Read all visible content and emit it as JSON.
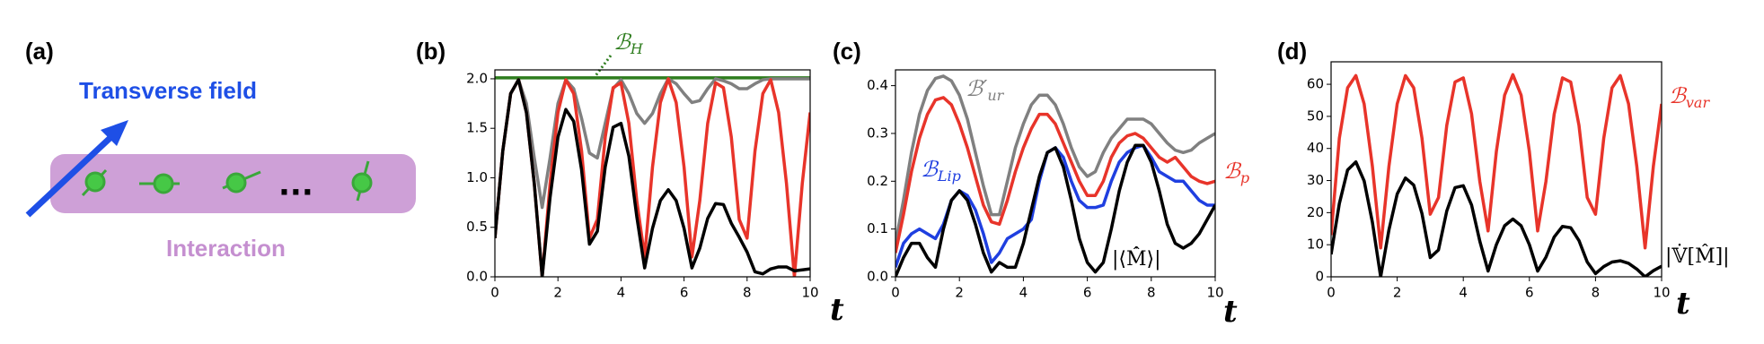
{
  "figure": {
    "panel_a": {
      "label": "(a)",
      "field_label": "Transverse field",
      "interaction_label": "Interaction"
    }
  },
  "chart_data": [
    {
      "type": "line",
      "panel_label": "(b)",
      "xlabel": "t",
      "xlim": [
        0,
        10
      ],
      "ylim": [
        0,
        2.09
      ],
      "xticks": [
        0,
        2,
        4,
        6,
        8,
        10
      ],
      "yticks": [
        {
          "value": 0,
          "label": "0.0"
        },
        {
          "value": 0.5,
          "label": "0.5"
        },
        {
          "value": 1,
          "label": "1.0"
        },
        {
          "value": 1.5,
          "label": "1.5"
        },
        {
          "value": 2,
          "label": "2.0"
        }
      ],
      "x": [
        0,
        0.25,
        0.5,
        0.75,
        1,
        1.25,
        1.5,
        1.75,
        2,
        2.25,
        2.5,
        2.75,
        3,
        3.25,
        3.5,
        3.75,
        4,
        4.25,
        4.5,
        4.75,
        5,
        5.25,
        5.5,
        5.75,
        6,
        6.25,
        6.5,
        6.75,
        7,
        7.25,
        7.5,
        7.75,
        8,
        8.25,
        8.5,
        8.75,
        9,
        9.25,
        9.5,
        9.75,
        10
      ],
      "series": [
        {
          "name": "ℬH",
          "color": "#2e7d1e",
          "values": [
            2.01,
            2.01,
            2.01,
            2.01,
            2.01,
            2.01,
            2.01,
            2.01,
            2.01,
            2.01,
            2.01,
            2.01,
            2.01,
            2.01,
            2.01,
            2.01,
            2.01,
            2.01,
            2.01,
            2.01,
            2.01,
            2.01,
            2.01,
            2.01,
            2.01,
            2.01,
            2.01,
            2.01,
            2.01,
            2.01,
            2.01,
            2.01,
            2.01,
            2.01,
            2.01,
            2.01,
            2.01,
            2.01,
            2.01,
            2.01,
            2.01
          ]
        },
        {
          "color": "#808080",
          "values": [
            0.39,
            1.27,
            1.85,
            1.99,
            1.75,
            1.2,
            0.7,
            1.2,
            1.75,
            1.99,
            1.9,
            1.6,
            1.25,
            1.2,
            1.55,
            1.9,
            1.99,
            1.85,
            1.65,
            1.55,
            1.65,
            1.85,
            2.0,
            1.95,
            1.85,
            1.76,
            1.78,
            1.9,
            2.0,
            1.98,
            1.95,
            1.9,
            1.9,
            1.95,
            1.99,
            2.0,
            2.0,
            2.0,
            2.0,
            2.0,
            2.0
          ]
        },
        {
          "color": "#e8342a",
          "values": [
            0.39,
            1.27,
            1.85,
            1.99,
            1.66,
            0.94,
            0.0,
            0.94,
            1.66,
            1.99,
            1.85,
            1.27,
            0.39,
            0.58,
            1.41,
            1.91,
            1.96,
            1.55,
            0.77,
            0.2,
            1.11,
            1.76,
            2.0,
            1.76,
            1.11,
            0.2,
            0.77,
            1.55,
            1.96,
            1.91,
            1.41,
            0.58,
            0.39,
            1.27,
            1.85,
            1.99,
            1.66,
            0.94,
            0.0,
            0.94,
            1.66
          ]
        },
        {
          "color": "#000000",
          "values": [
            0.39,
            1.27,
            1.85,
            1.99,
            1.66,
            0.94,
            0.0,
            0.8,
            1.41,
            1.69,
            1.57,
            1.08,
            0.33,
            0.46,
            1.11,
            1.51,
            1.55,
            1.22,
            0.61,
            0.09,
            0.49,
            0.77,
            0.88,
            0.77,
            0.49,
            0.09,
            0.29,
            0.59,
            0.74,
            0.73,
            0.54,
            0.4,
            0.25,
            0.05,
            0.03,
            0.08,
            0.1,
            0.1,
            0.06,
            0.07,
            0.08
          ]
        }
      ]
    },
    {
      "type": "line",
      "panel_label": "(c)",
      "xlabel": "t",
      "xlim": [
        0,
        10
      ],
      "ylim": [
        0,
        0.433
      ],
      "xticks": [
        0,
        2,
        4,
        6,
        8,
        10
      ],
      "yticks": [
        {
          "value": 0,
          "label": "0.0"
        },
        0.1,
        0.2,
        0.3,
        0.4
      ],
      "x": [
        0,
        0.25,
        0.5,
        0.75,
        1,
        1.25,
        1.5,
        1.75,
        2,
        2.25,
        2.5,
        2.75,
        3,
        3.25,
        3.5,
        3.75,
        4,
        4.25,
        4.5,
        4.75,
        5,
        5.25,
        5.5,
        5.75,
        6,
        6.25,
        6.5,
        6.75,
        7,
        7.25,
        7.5,
        7.75,
        8,
        8.25,
        8.5,
        8.75,
        9,
        9.25,
        9.5,
        9.75,
        10
      ],
      "series": [
        {
          "name": "ℬ′ur",
          "color": "#808080",
          "values": [
            0.07,
            0.16,
            0.26,
            0.34,
            0.39,
            0.415,
            0.42,
            0.41,
            0.38,
            0.33,
            0.26,
            0.19,
            0.13,
            0.13,
            0.2,
            0.27,
            0.32,
            0.36,
            0.38,
            0.38,
            0.36,
            0.32,
            0.27,
            0.23,
            0.21,
            0.22,
            0.26,
            0.29,
            0.31,
            0.33,
            0.33,
            0.33,
            0.32,
            0.3,
            0.28,
            0.265,
            0.26,
            0.265,
            0.28,
            0.29,
            0.3
          ]
        },
        {
          "name": "ℬp",
          "color": "#e8342a",
          "values": [
            0.05,
            0.13,
            0.22,
            0.29,
            0.34,
            0.37,
            0.375,
            0.36,
            0.32,
            0.27,
            0.21,
            0.15,
            0.115,
            0.11,
            0.16,
            0.22,
            0.27,
            0.31,
            0.34,
            0.34,
            0.32,
            0.28,
            0.24,
            0.2,
            0.17,
            0.17,
            0.2,
            0.25,
            0.28,
            0.295,
            0.3,
            0.29,
            0.27,
            0.25,
            0.24,
            0.25,
            0.23,
            0.21,
            0.2,
            0.195,
            0.2
          ]
        },
        {
          "name": "ℬLip",
          "color": "#1f3fe0",
          "values": [
            0.02,
            0.07,
            0.09,
            0.1,
            0.09,
            0.08,
            0.11,
            0.16,
            0.18,
            0.17,
            0.14,
            0.09,
            0.03,
            0.05,
            0.08,
            0.09,
            0.1,
            0.12,
            0.2,
            0.26,
            0.27,
            0.25,
            0.2,
            0.16,
            0.145,
            0.145,
            0.15,
            0.2,
            0.24,
            0.26,
            0.27,
            0.275,
            0.25,
            0.22,
            0.21,
            0.2,
            0.2,
            0.18,
            0.16,
            0.15,
            0.15
          ]
        },
        {
          "name": "|⟨M̂̇⟩|",
          "color": "#000000",
          "values": [
            0.0,
            0.04,
            0.07,
            0.07,
            0.04,
            0.02,
            0.1,
            0.16,
            0.18,
            0.16,
            0.11,
            0.05,
            0.01,
            0.03,
            0.02,
            0.02,
            0.07,
            0.14,
            0.21,
            0.26,
            0.27,
            0.23,
            0.16,
            0.08,
            0.03,
            0.01,
            0.03,
            0.1,
            0.18,
            0.24,
            0.275,
            0.275,
            0.24,
            0.18,
            0.11,
            0.07,
            0.06,
            0.07,
            0.09,
            0.12,
            0.15
          ]
        }
      ]
    },
    {
      "type": "line",
      "panel_label": "(d)",
      "xlabel": "t",
      "xlim": [
        0,
        10
      ],
      "ylim": [
        0,
        67
      ],
      "xticks": [
        0,
        2,
        4,
        6,
        8,
        10
      ],
      "yticks": [
        0,
        10,
        20,
        30,
        40,
        50,
        60
      ],
      "x": [
        0,
        0.25,
        0.5,
        0.75,
        1,
        1.25,
        1.5,
        1.75,
        2,
        2.25,
        2.5,
        2.75,
        3,
        3.25,
        3.5,
        3.75,
        4,
        4.25,
        4.5,
        4.75,
        5,
        5.25,
        5.5,
        5.75,
        6,
        6.25,
        6.5,
        6.75,
        7,
        7.25,
        7.5,
        7.75,
        8,
        8.25,
        8.5,
        8.75,
        9,
        9.25,
        9.5,
        9.75,
        10
      ],
      "series": [
        {
          "name": "ℬvar",
          "color": "#e8342a",
          "values": [
            13,
            43.2,
            58.9,
            62.7,
            53.9,
            34.4,
            9,
            34.4,
            53.9,
            62.7,
            58.9,
            43.2,
            19.5,
            24.7,
            47.2,
            60.7,
            62.0,
            50.8,
            29.7,
            14.3,
            39.0,
            56.6,
            63,
            56.6,
            39.0,
            14.3,
            29.7,
            50.7,
            62.0,
            60.7,
            47.2,
            24.7,
            19.5,
            43.2,
            58.9,
            62.7,
            53.9,
            34.4,
            9,
            34.4,
            53.9
          ]
        },
        {
          "name": "|𝕍̇[M̂]|",
          "color": "#000000",
          "values": [
            7.0,
            22.8,
            33.3,
            35.8,
            29.9,
            17.0,
            0,
            14.6,
            25.8,
            30.8,
            28.6,
            19.7,
            6.0,
            8.4,
            20.5,
            27.8,
            28.4,
            22.4,
            11.1,
            1.8,
            10.0,
            15.9,
            18,
            15.9,
            10.0,
            1.8,
            6.1,
            12.4,
            15.7,
            15.3,
            11.3,
            4.6,
            1.0,
            3.2,
            4.6,
            5.0,
            4.2,
            2.4,
            0,
            1.9,
            3.3
          ]
        }
      ]
    }
  ]
}
